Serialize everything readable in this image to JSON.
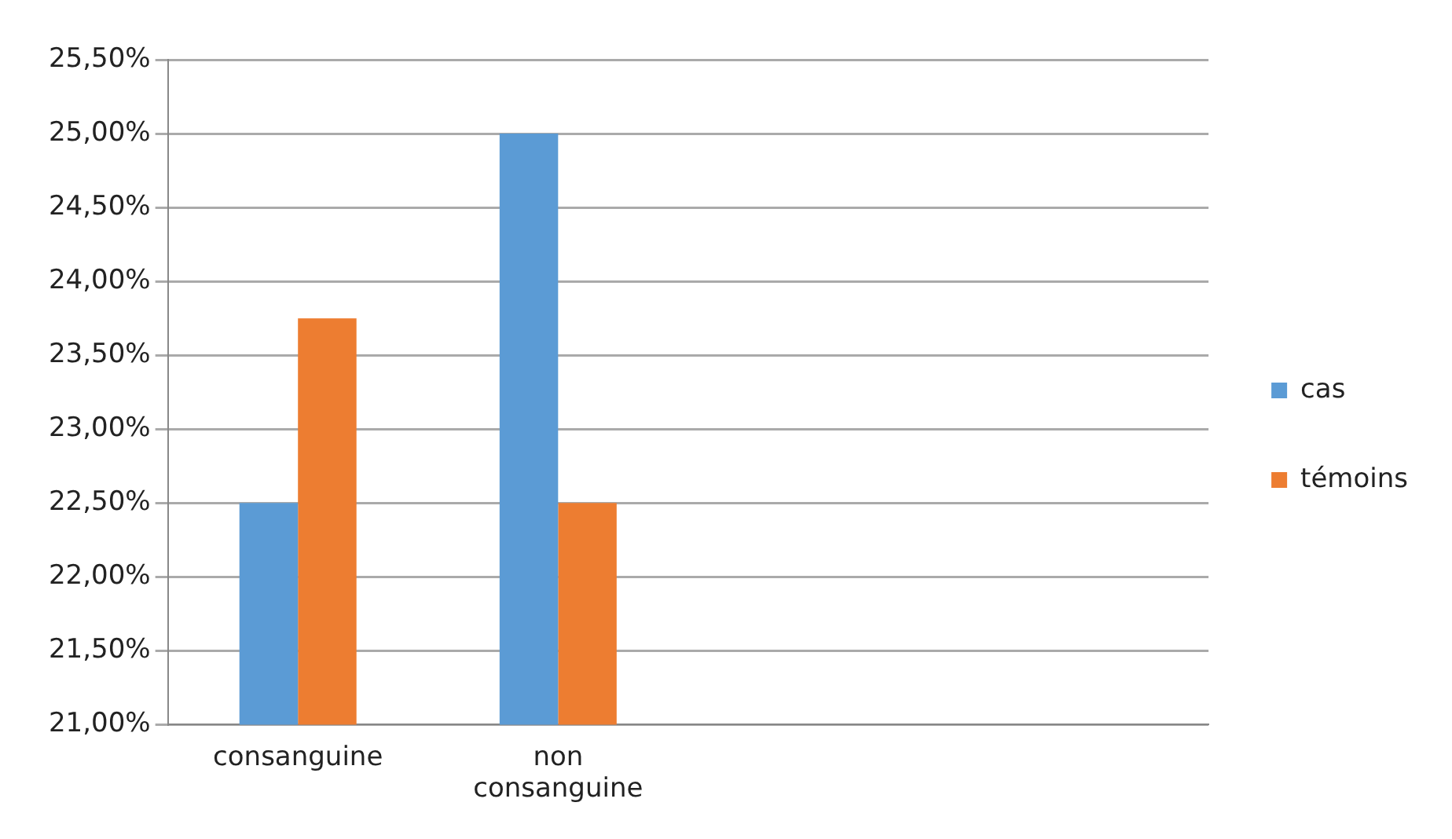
{
  "chart_data": {
    "type": "bar",
    "categories": [
      "consanguine",
      "non consanguine",
      null,
      null
    ],
    "series": [
      {
        "name": "cas",
        "color": "#5b9bd5",
        "values": [
          22.5,
          25,
          null,
          null
        ]
      },
      {
        "name": "témoins",
        "color": "#ed7d31",
        "values": [
          23.75,
          22.5,
          null,
          null
        ]
      }
    ],
    "ylim": [
      21,
      25.5
    ],
    "yticks": [
      {
        "value": 21,
        "label": "21,00%"
      },
      {
        "value": 21.5,
        "label": "21,50%"
      },
      {
        "value": 22,
        "label": "22,00%"
      },
      {
        "value": 22.5,
        "label": "22,50%"
      },
      {
        "value": 23,
        "label": "23,00%"
      },
      {
        "value": 23.5,
        "label": "23,50%"
      },
      {
        "value": 24,
        "label": "24,00%"
      },
      {
        "value": 24.5,
        "label": "24,50%"
      },
      {
        "value": 25,
        "label": "25,00%"
      },
      {
        "value": 25.5,
        "label": "25,50%"
      }
    ],
    "grid": "y",
    "legend": "right"
  }
}
